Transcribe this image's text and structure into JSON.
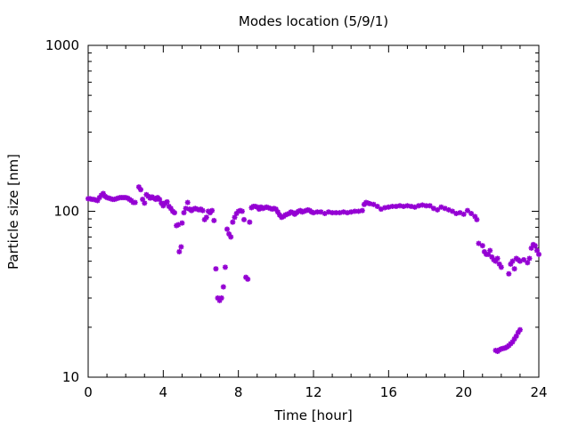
{
  "chart_data": {
    "type": "scatter",
    "title": "Modes location (5/9/1)",
    "xlabel": "Time [hour]",
    "ylabel": "Particle size [nm]",
    "xlim": [
      0,
      24
    ],
    "ylim": [
      10,
      1000
    ],
    "yscale": "log",
    "xticks": [
      0,
      4,
      8,
      12,
      16,
      20,
      24
    ],
    "yticks": [
      10,
      100,
      1000
    ],
    "marker_color": "#9400d3",
    "marker": "star",
    "grid": false,
    "legend": "none",
    "points": [
      [
        0.0,
        119
      ],
      [
        0.1,
        119
      ],
      [
        0.2,
        118
      ],
      [
        0.3,
        118
      ],
      [
        0.4,
        117
      ],
      [
        0.5,
        116
      ],
      [
        0.6,
        121
      ],
      [
        0.7,
        125
      ],
      [
        0.8,
        128
      ],
      [
        0.9,
        123
      ],
      [
        1.0,
        121
      ],
      [
        1.1,
        120
      ],
      [
        1.2,
        119
      ],
      [
        1.3,
        118
      ],
      [
        1.4,
        118
      ],
      [
        1.5,
        119
      ],
      [
        1.6,
        120
      ],
      [
        1.7,
        121
      ],
      [
        1.8,
        121
      ],
      [
        1.9,
        121
      ],
      [
        2.0,
        121
      ],
      [
        2.1,
        120
      ],
      [
        2.2,
        118
      ],
      [
        2.3,
        116
      ],
      [
        2.4,
        113
      ],
      [
        2.5,
        113
      ],
      [
        2.7,
        140
      ],
      [
        2.8,
        135
      ],
      [
        2.9,
        118
      ],
      [
        3.0,
        112
      ],
      [
        3.1,
        126
      ],
      [
        3.2,
        123
      ],
      [
        3.3,
        120
      ],
      [
        3.4,
        122
      ],
      [
        3.5,
        120
      ],
      [
        3.6,
        118
      ],
      [
        3.7,
        121
      ],
      [
        3.8,
        118
      ],
      [
        3.9,
        112
      ],
      [
        4.0,
        108
      ],
      [
        4.1,
        112
      ],
      [
        4.2,
        114
      ],
      [
        4.3,
        107
      ],
      [
        4.4,
        104
      ],
      [
        4.5,
        100
      ],
      [
        4.6,
        98
      ],
      [
        4.7,
        82
      ],
      [
        4.8,
        83
      ],
      [
        4.85,
        57
      ],
      [
        4.95,
        61
      ],
      [
        5.0,
        85
      ],
      [
        5.1,
        98
      ],
      [
        5.2,
        104
      ],
      [
        5.3,
        113
      ],
      [
        5.4,
        103
      ],
      [
        5.5,
        101
      ],
      [
        5.6,
        103
      ],
      [
        5.7,
        104
      ],
      [
        5.8,
        103
      ],
      [
        5.9,
        102
      ],
      [
        6.0,
        103
      ],
      [
        6.1,
        101
      ],
      [
        6.2,
        89
      ],
      [
        6.3,
        92
      ],
      [
        6.4,
        100
      ],
      [
        6.5,
        98
      ],
      [
        6.6,
        101
      ],
      [
        6.7,
        88
      ],
      [
        6.8,
        45
      ],
      [
        6.9,
        30
      ],
      [
        7.0,
        29
      ],
      [
        7.1,
        30
      ],
      [
        7.2,
        35
      ],
      [
        7.3,
        46
      ],
      [
        7.4,
        78
      ],
      [
        7.5,
        73
      ],
      [
        7.6,
        70
      ],
      [
        7.7,
        86
      ],
      [
        7.8,
        92
      ],
      [
        7.9,
        97
      ],
      [
        8.0,
        100
      ],
      [
        8.1,
        101
      ],
      [
        8.2,
        100
      ],
      [
        8.3,
        89
      ],
      [
        8.4,
        40
      ],
      [
        8.5,
        39
      ],
      [
        8.6,
        86
      ],
      [
        8.7,
        105
      ],
      [
        8.8,
        107
      ],
      [
        8.9,
        107
      ],
      [
        9.0,
        106
      ],
      [
        9.1,
        103
      ],
      [
        9.2,
        106
      ],
      [
        9.3,
        104
      ],
      [
        9.4,
        105
      ],
      [
        9.5,
        106
      ],
      [
        9.6,
        105
      ],
      [
        9.7,
        104
      ],
      [
        9.8,
        103
      ],
      [
        9.9,
        104
      ],
      [
        10.0,
        103
      ],
      [
        10.1,
        99
      ],
      [
        10.2,
        95
      ],
      [
        10.3,
        92
      ],
      [
        10.4,
        93
      ],
      [
        10.5,
        95
      ],
      [
        10.6,
        96
      ],
      [
        10.7,
        97
      ],
      [
        10.8,
        99
      ],
      [
        10.9,
        98
      ],
      [
        11.0,
        96
      ],
      [
        11.1,
        98
      ],
      [
        11.2,
        100
      ],
      [
        11.3,
        101
      ],
      [
        11.4,
        99
      ],
      [
        11.5,
        100
      ],
      [
        11.6,
        101
      ],
      [
        11.7,
        102
      ],
      [
        11.8,
        101
      ],
      [
        11.9,
        99
      ],
      [
        12.0,
        98
      ],
      [
        12.2,
        99
      ],
      [
        12.4,
        99
      ],
      [
        12.6,
        97
      ],
      [
        12.8,
        99
      ],
      [
        13.0,
        98
      ],
      [
        13.2,
        98
      ],
      [
        13.4,
        98
      ],
      [
        13.6,
        99
      ],
      [
        13.8,
        98
      ],
      [
        14.0,
        99
      ],
      [
        14.2,
        100
      ],
      [
        14.4,
        100
      ],
      [
        14.6,
        101
      ],
      [
        14.7,
        110
      ],
      [
        14.8,
        113
      ],
      [
        14.9,
        112
      ],
      [
        15.0,
        111
      ],
      [
        15.2,
        110
      ],
      [
        15.4,
        107
      ],
      [
        15.6,
        103
      ],
      [
        15.8,
        105
      ],
      [
        16.0,
        106
      ],
      [
        16.2,
        107
      ],
      [
        16.4,
        107
      ],
      [
        16.6,
        108
      ],
      [
        16.8,
        107
      ],
      [
        17.0,
        108
      ],
      [
        17.2,
        107
      ],
      [
        17.4,
        106
      ],
      [
        17.6,
        108
      ],
      [
        17.8,
        109
      ],
      [
        18.0,
        108
      ],
      [
        18.2,
        108
      ],
      [
        18.4,
        104
      ],
      [
        18.6,
        102
      ],
      [
        18.8,
        106
      ],
      [
        19.0,
        104
      ],
      [
        19.2,
        102
      ],
      [
        19.4,
        100
      ],
      [
        19.6,
        97
      ],
      [
        19.8,
        98
      ],
      [
        20.0,
        96
      ],
      [
        20.2,
        101
      ],
      [
        20.4,
        97
      ],
      [
        20.6,
        93
      ],
      [
        20.7,
        89
      ],
      [
        20.8,
        64
      ],
      [
        21.0,
        62
      ],
      [
        21.1,
        57
      ],
      [
        21.2,
        55
      ],
      [
        21.3,
        55
      ],
      [
        21.4,
        58
      ],
      [
        21.5,
        53
      ],
      [
        21.6,
        51
      ],
      [
        21.7,
        50
      ],
      [
        21.8,
        52
      ],
      [
        21.9,
        48
      ],
      [
        22.0,
        46
      ],
      [
        22.4,
        42
      ],
      [
        22.5,
        48
      ],
      [
        22.6,
        50
      ],
      [
        22.7,
        45
      ],
      [
        22.8,
        52
      ],
      [
        22.9,
        51
      ],
      [
        23.0,
        50
      ],
      [
        23.2,
        51
      ],
      [
        23.4,
        49
      ],
      [
        23.5,
        52
      ],
      [
        23.6,
        60
      ],
      [
        23.7,
        63
      ],
      [
        23.8,
        62
      ],
      [
        23.9,
        58
      ],
      [
        24.0,
        55
      ],
      [
        21.7,
        14.5
      ],
      [
        21.8,
        14.3
      ],
      [
        21.9,
        14.6
      ],
      [
        22.0,
        14.8
      ],
      [
        22.1,
        14.9
      ],
      [
        22.2,
        15.0
      ],
      [
        22.3,
        15.2
      ],
      [
        22.4,
        15.5
      ],
      [
        22.5,
        15.9
      ],
      [
        22.6,
        16.3
      ],
      [
        22.7,
        17.0
      ],
      [
        22.8,
        17.7
      ],
      [
        22.9,
        18.6
      ],
      [
        23.0,
        19.3
      ]
    ]
  }
}
